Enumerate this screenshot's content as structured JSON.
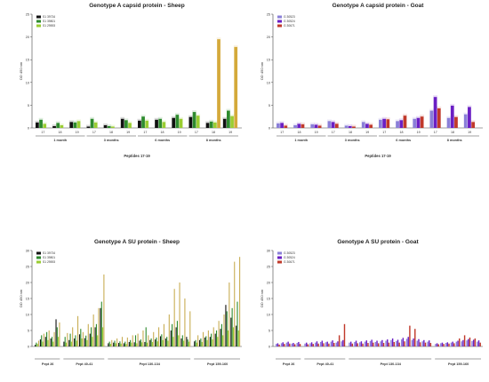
{
  "figure": {
    "panels": [
      {
        "title": "Genotype A capsid protein - Sheep",
        "ylabel": "OD 450 nm",
        "xlabel": "Peptides 17-19"
      },
      {
        "title": "Genotype A capsid protein - Goat",
        "ylabel": "OD 450 nm",
        "xlabel": "Peptides 17-19"
      },
      {
        "title": "Genotype A SU protein - Sheep",
        "ylabel": "OD 450 nm"
      },
      {
        "title": "Genotype A SU protein - Goat",
        "ylabel": "OD 450 nm"
      }
    ]
  },
  "chart_data": [
    {
      "type": "bar",
      "title": "Genotype A capsid protein - Sheep",
      "ylabel": "OD 450 nm",
      "xlabel": "Peptides 17-19",
      "ylim": [
        0,
        25
      ],
      "yticks": [
        0,
        5,
        10,
        15,
        20,
        25
      ],
      "categories": [
        "17",
        "18",
        "19",
        "17",
        "18",
        "19",
        "17",
        "18",
        "19",
        "17",
        "18",
        "19"
      ],
      "groups": [
        {
          "label": "1 month",
          "size": 3
        },
        {
          "label": "3 months",
          "size": 3
        },
        {
          "label": "6 months",
          "size": 3
        },
        {
          "label": "8 months",
          "size": 3
        }
      ],
      "series": [
        {
          "name": "S1 39734",
          "color": "#111111",
          "values": [
            1.2,
            0.4,
            1.3,
            0.3,
            0.6,
            2.0,
            1.6,
            1.8,
            2.2,
            2.4,
            1.1,
            2.0
          ]
        },
        {
          "name": "S1 39801",
          "color": "#2e8b2e",
          "values": [
            1.8,
            1.1,
            1.2,
            2.0,
            0.4,
            1.7,
            2.5,
            2.0,
            2.9,
            3.5,
            1.4,
            3.8
          ]
        },
        {
          "name": "S1 29593",
          "color": "#9acd32",
          "values": [
            0.9,
            0.6,
            1.5,
            1.2,
            0.3,
            1.1,
            1.6,
            1.3,
            2.0,
            2.7,
            1.2,
            2.6
          ]
        },
        {
          "name": "",
          "color": "#d4a93a",
          "values": [
            0,
            0,
            0,
            0,
            0,
            0,
            0,
            0,
            0,
            0,
            19.5,
            17.8
          ]
        }
      ]
    },
    {
      "type": "bar",
      "title": "Genotype A capsid protein - Goat",
      "ylabel": "OD 450 nm",
      "xlabel": "Peptides 17-19",
      "ylim": [
        0,
        25
      ],
      "yticks": [
        0,
        5,
        10,
        15,
        20,
        25
      ],
      "categories": [
        "17",
        "18",
        "19",
        "17",
        "18",
        "19",
        "17",
        "18",
        "19",
        "17",
        "18",
        "19"
      ],
      "groups": [
        {
          "label": "1 month",
          "size": 3
        },
        {
          "label": "3 months",
          "size": 3
        },
        {
          "label": "6 months",
          "size": 3
        },
        {
          "label": "8 months",
          "size": 3
        }
      ],
      "series": [
        {
          "name": "G 30523",
          "color": "#8a7fd8",
          "values": [
            1.0,
            0.6,
            0.8,
            1.5,
            0.5,
            1.3,
            1.8,
            1.5,
            2.0,
            3.8,
            2.2,
            3.0
          ]
        },
        {
          "name": "G 30524",
          "color": "#6a1fc4",
          "values": [
            1.1,
            0.9,
            0.7,
            1.3,
            0.4,
            0.9,
            2.0,
            1.7,
            2.2,
            6.8,
            4.9,
            4.6
          ]
        },
        {
          "name": "G 30671",
          "color": "#c0392b",
          "values": [
            0.5,
            0.8,
            0.5,
            0.9,
            0.3,
            0.7,
            1.9,
            2.7,
            2.5,
            4.3,
            2.4,
            1.3
          ]
        }
      ]
    },
    {
      "type": "bar",
      "title": "Genotype A SU protein - Sheep",
      "ylabel": "OD 450 nm",
      "ylim": [
        0,
        30
      ],
      "yticks": [
        0,
        5,
        10,
        15,
        20,
        25,
        30
      ],
      "groups": [
        {
          "label": "Pept 26",
          "n": 5
        },
        {
          "label": "Pept 40-41",
          "n": 8
        },
        {
          "label": "Pept 130-134",
          "n": 16
        },
        {
          "label": "Pept 159-160",
          "n": 9
        }
      ],
      "series": [
        {
          "name": "S1 39734",
          "color": "#111111",
          "values": [
            0.5,
            2.2,
            3.0,
            2.5,
            8.5,
            1.5,
            2.0,
            2.5,
            3.8,
            2.6,
            4.0,
            6.0,
            12.0,
            1.0,
            1.2,
            1.1,
            1.0,
            1.4,
            1.3,
            1.8,
            1.4,
            2.0,
            2.2,
            3.2,
            2.5,
            5.0,
            6.0,
            2.5,
            3.0,
            1.6,
            2.0,
            2.8,
            3.0,
            4.0,
            5.5,
            13.0,
            9.0,
            6.5
          ]
        },
        {
          "name": "S1 39801",
          "color": "#2e8b2e",
          "values": [
            1.2,
            3.5,
            4.5,
            3.0,
            6.0,
            3.0,
            4.0,
            3.5,
            5.5,
            3.4,
            6.0,
            7.0,
            14.0,
            1.5,
            1.8,
            1.6,
            1.5,
            2.0,
            3.5,
            2.2,
            6.0,
            2.5,
            2.8,
            3.8,
            3.0,
            7.0,
            8.0,
            3.5,
            2.2,
            2.0,
            2.5,
            3.2,
            4.0,
            5.0,
            7.0,
            11.0,
            12.0,
            14.0
          ]
        },
        {
          "name": "S1 29593",
          "color": "#9acd32",
          "values": [
            0.8,
            1.5,
            2.0,
            1.5,
            3.0,
            1.2,
            1.5,
            1.8,
            2.5,
            2.0,
            3.0,
            3.5,
            6.0,
            0.8,
            1.0,
            0.9,
            0.8,
            1.2,
            1.0,
            1.3,
            1.2,
            1.4,
            1.6,
            2.0,
            1.8,
            3.0,
            3.5,
            1.8,
            1.5,
            1.2,
            1.4,
            2.0,
            2.2,
            3.0,
            3.5,
            5.0,
            6.0,
            5.0
          ]
        },
        {
          "name": "",
          "color": "#c9ae55",
          "values": [
            1.8,
            4.0,
            5.0,
            4.5,
            7.5,
            4.2,
            6.0,
            9.5,
            4.5,
            7.0,
            10.0,
            12.0,
            22.5,
            2.0,
            2.5,
            3.0,
            2.8,
            3.5,
            4.0,
            5.0,
            3.5,
            4.5,
            6.0,
            7.0,
            10.0,
            18.0,
            20.0,
            15.0,
            11.0,
            3.5,
            4.5,
            5.0,
            6.0,
            8.0,
            10.0,
            20.0,
            26.5,
            28.0
          ]
        }
      ]
    },
    {
      "type": "bar",
      "title": "Genotype A SU protein - Goat",
      "ylabel": "OD 450 nm",
      "ylim": [
        0,
        30
      ],
      "yticks": [
        0,
        5,
        10,
        15,
        20,
        25,
        30
      ],
      "groups": [
        {
          "label": "Pept 26",
          "n": 5
        },
        {
          "label": "Pept 40-41",
          "n": 8
        },
        {
          "label": "Pept 130-134",
          "n": 16
        },
        {
          "label": "Pept 159-160",
          "n": 9
        }
      ],
      "series": [
        {
          "name": "G 30523",
          "color": "#8a7fd8",
          "values": [
            0.8,
            1.0,
            1.2,
            0.9,
            1.1,
            0.9,
            1.0,
            1.2,
            1.4,
            1.3,
            1.5,
            1.2,
            1.6,
            1.2,
            1.4,
            1.3,
            1.5,
            1.7,
            1.4,
            1.6,
            1.8,
            2.0,
            1.7,
            2.2,
            2.4,
            2.0,
            1.8,
            1.6,
            1.5,
            0.8,
            1.0,
            1.1,
            1.2,
            1.5,
            1.6,
            1.9,
            1.7,
            1.5
          ]
        },
        {
          "name": "G 30524",
          "color": "#6a1fc4",
          "values": [
            1.0,
            1.3,
            1.5,
            1.1,
            1.4,
            1.2,
            1.3,
            1.6,
            1.8,
            1.5,
            1.9,
            1.6,
            2.0,
            1.5,
            1.8,
            1.6,
            1.9,
            2.1,
            1.8,
            2.0,
            2.2,
            2.5,
            2.1,
            2.7,
            3.0,
            2.5,
            2.3,
            2.0,
            1.9,
            1.0,
            1.2,
            1.3,
            1.5,
            1.8,
            2.0,
            2.3,
            2.1,
            1.9
          ]
        },
        {
          "name": "G 30671",
          "color": "#c0392b",
          "values": [
            0.6,
            0.8,
            0.9,
            0.7,
            0.8,
            0.7,
            0.8,
            0.9,
            1.0,
            0.9,
            1.1,
            3.5,
            7.0,
            0.9,
            1.0,
            0.9,
            1.1,
            1.2,
            1.0,
            1.1,
            1.2,
            1.4,
            1.2,
            1.6,
            6.5,
            5.5,
            1.3,
            1.2,
            1.1,
            0.7,
            0.8,
            0.9,
            1.0,
            2.5,
            3.5,
            2.8,
            2.5,
            1.2
          ]
        }
      ]
    }
  ]
}
